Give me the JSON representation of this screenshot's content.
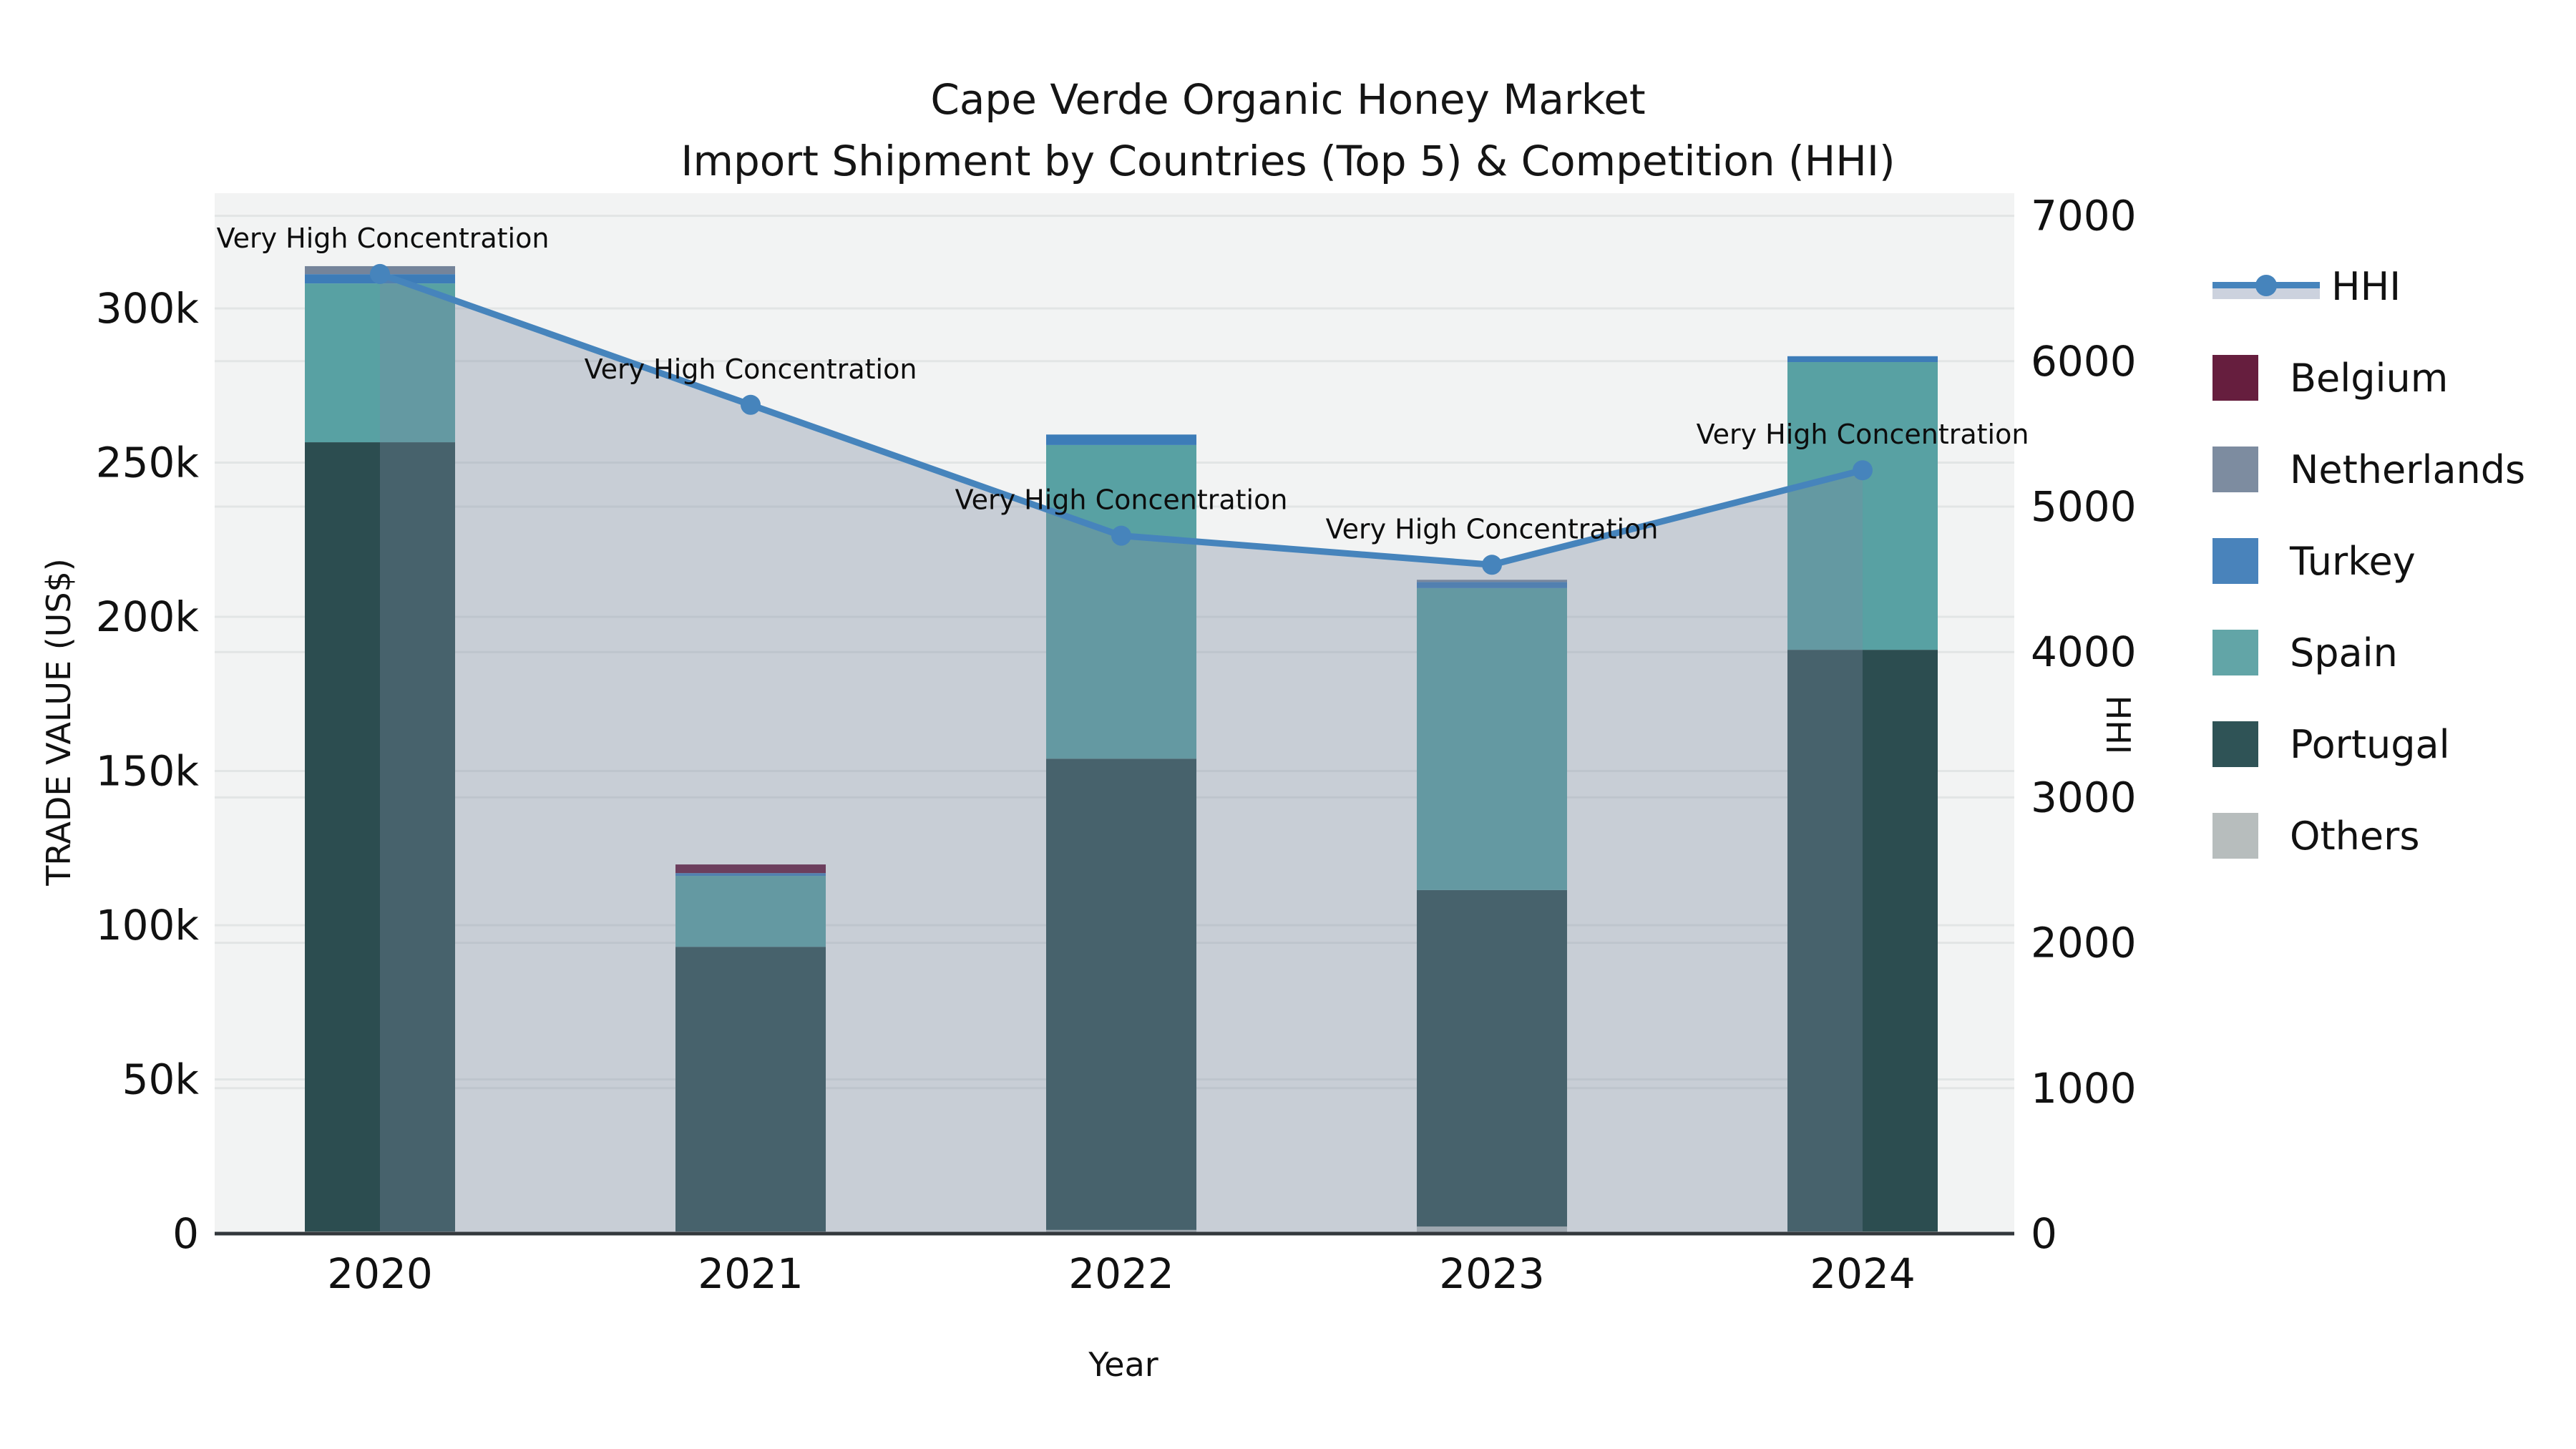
{
  "title_line1": "Cape Verde Organic Honey Market",
  "title_line2": "Import Shipment by Countries (Top 5) & Competition (HHI)",
  "axes": {
    "left_title": "TRADE VALUE (US$)",
    "right_title": "HHI",
    "x_title": "Year",
    "left_ticks": [
      {
        "label": "0",
        "value": 0
      },
      {
        "label": "50k",
        "value": 50000
      },
      {
        "label": "100k",
        "value": 100000
      },
      {
        "label": "150k",
        "value": 150000
      },
      {
        "label": "200k",
        "value": 200000
      },
      {
        "label": "250k",
        "value": 250000
      },
      {
        "label": "300k",
        "value": 300000
      }
    ],
    "right_ticks": [
      {
        "label": "0",
        "value": 0
      },
      {
        "label": "1000",
        "value": 1000
      },
      {
        "label": "2000",
        "value": 2000
      },
      {
        "label": "3000",
        "value": 3000
      },
      {
        "label": "4000",
        "value": 4000
      },
      {
        "label": "5000",
        "value": 5000
      },
      {
        "label": "6000",
        "value": 6000
      },
      {
        "label": "7000",
        "value": 7000
      }
    ]
  },
  "chart_data": {
    "type": "bar",
    "subtype": "stacked-bars-with-line-overlay",
    "categories": [
      "2020",
      "2021",
      "2022",
      "2023",
      "2024"
    ],
    "series": [
      {
        "name": "Others",
        "color": "#b2b8b8",
        "values": [
          700,
          700,
          1200,
          2300,
          700
        ]
      },
      {
        "name": "Portugal",
        "color": "#2c4d50",
        "values": [
          255900,
          92300,
          152800,
          109100,
          188600
        ]
      },
      {
        "name": "Spain",
        "color": "#58a1a3",
        "values": [
          51500,
          23000,
          101700,
          97900,
          93300
        ]
      },
      {
        "name": "Turkey",
        "color": "#3d7cb8",
        "values": [
          3000,
          900,
          3400,
          2000,
          1900
        ]
      },
      {
        "name": "Netherlands",
        "color": "#75849a",
        "values": [
          2600,
          0,
          0,
          700,
          0
        ]
      },
      {
        "name": "Belgium",
        "color": "#65163a",
        "values": [
          0,
          2800,
          0,
          0,
          0
        ]
      }
    ],
    "line_series": {
      "name": "HHI",
      "color": "#4684bc",
      "area_fill": "rgba(123,138,160,0.35)",
      "values": [
        6600,
        5700,
        4800,
        4600,
        5250
      ]
    },
    "annotations": [
      {
        "text": "Very High Concentration",
        "category": "2020"
      },
      {
        "text": "Very High Concentration",
        "category": "2021"
      },
      {
        "text": "Very High Concentration",
        "category": "2022"
      },
      {
        "text": "Very High Concentration",
        "category": "2023"
      },
      {
        "text": "Very High Concentration",
        "category": "2024"
      }
    ],
    "title": "Cape Verde Organic Honey Market — Import Shipment by Countries (Top 5) & Competition (HHI)",
    "xlabel": "Year",
    "ylabel": "TRADE VALUE (US$)",
    "ylabel_right": "HHI",
    "ylim_left": [
      0,
      337000
    ],
    "ylim_right": [
      0,
      7160
    ],
    "grid": true,
    "legend_position": "right"
  },
  "legend": {
    "items": [
      {
        "label": "HHI",
        "color": "#4684bc",
        "kind": "line"
      },
      {
        "label": "Belgium",
        "color": "#661e3e",
        "kind": "patch"
      },
      {
        "label": "Netherlands",
        "color": "#7d8ca0",
        "kind": "patch"
      },
      {
        "label": "Turkey",
        "color": "#4983bb",
        "kind": "patch"
      },
      {
        "label": "Spain",
        "color": "#62a5a7",
        "kind": "patch"
      },
      {
        "label": "Portugal",
        "color": "#2f5356",
        "kind": "patch"
      },
      {
        "label": "Others",
        "color": "#b7bdbd",
        "kind": "patch"
      }
    ]
  },
  "style_colors": {
    "plot_bg": "#f2f3f3",
    "grid_line": "#e2e5e5",
    "axis_line": "#33383c",
    "text": "#111111"
  }
}
